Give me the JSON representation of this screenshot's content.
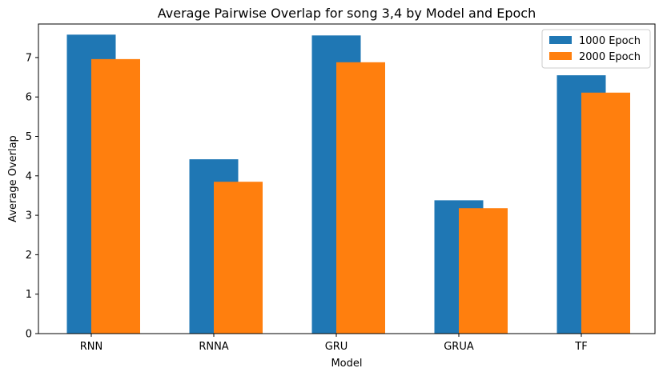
{
  "chart_data": {
    "type": "bar",
    "title": "Average Pairwise Overlap for song 3,4 by Model and Epoch",
    "xlabel": "Model",
    "ylabel": "Average Overlap",
    "categories": [
      "RNN",
      "RNNA",
      "GRU",
      "GRUA",
      "TF"
    ],
    "series": [
      {
        "name": "1000 Epoch",
        "color": "#1f77b4",
        "values": [
          7.58,
          4.42,
          7.56,
          3.38,
          6.55
        ]
      },
      {
        "name": "2000 Epoch",
        "color": "#ff7f0e",
        "values": [
          6.96,
          3.85,
          6.88,
          3.18,
          6.11
        ]
      }
    ],
    "ylim": [
      0,
      7.85
    ],
    "yticks": [
      "0",
      "1",
      "2",
      "3",
      "4",
      "5",
      "6",
      "7"
    ],
    "grid": false,
    "legend_position": "top-right"
  }
}
